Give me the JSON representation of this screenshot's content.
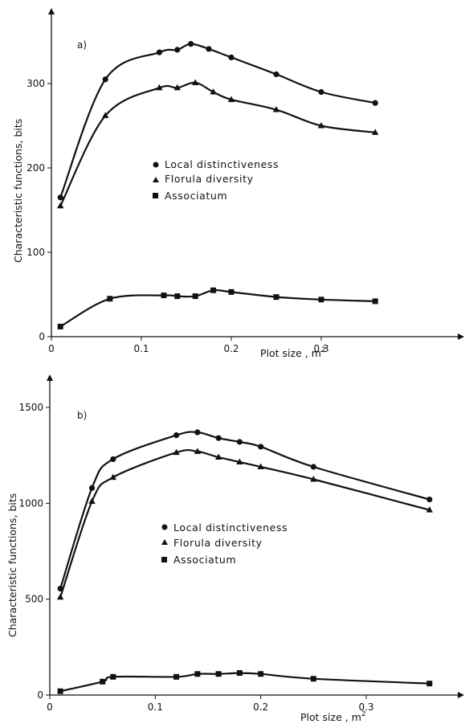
{
  "chart_data": [
    {
      "type": "line",
      "panel_label": "a)",
      "xlabel": "Plot size , m",
      "xlabel_sup": "2",
      "ylabel": "Characteristic functions, bits",
      "xlim": [
        0,
        0.38
      ],
      "ylim": [
        0,
        380
      ],
      "xticks": [
        0,
        0.1,
        0.2,
        0.3
      ],
      "xtick_labels": [
        "0",
        "0.1",
        "0.2",
        "0.3"
      ],
      "yticks": [
        0,
        100,
        200,
        300
      ],
      "ytick_labels": [
        "0",
        "100",
        "200",
        "300"
      ],
      "legend_position": "center",
      "series": [
        {
          "name": "Local distinctiveness",
          "marker": "circle",
          "x": [
            0.01,
            0.06,
            0.12,
            0.14,
            0.155,
            0.175,
            0.2,
            0.25,
            0.3,
            0.36
          ],
          "y": [
            165,
            305,
            337,
            340,
            347,
            341,
            331,
            311,
            290,
            277
          ]
        },
        {
          "name": "Florula diversity",
          "marker": "triangle",
          "x": [
            0.01,
            0.06,
            0.12,
            0.14,
            0.16,
            0.18,
            0.2,
            0.25,
            0.3,
            0.36
          ],
          "y": [
            155,
            262,
            295,
            295,
            301,
            290,
            281,
            269,
            250,
            242
          ]
        },
        {
          "name": "Associatum",
          "marker": "square",
          "x": [
            0.01,
            0.065,
            0.125,
            0.14,
            0.16,
            0.18,
            0.2,
            0.25,
            0.3,
            0.36
          ],
          "y": [
            12,
            45,
            49,
            48,
            48,
            55,
            53,
            47,
            44,
            42
          ]
        }
      ]
    },
    {
      "type": "line",
      "panel_label": "b)",
      "xlabel": "Plot size , m",
      "xlabel_sup": "2",
      "ylabel": "Characteristic functions, bits",
      "xlim": [
        0,
        0.38
      ],
      "ylim": [
        0,
        1650
      ],
      "xticks": [
        0,
        0.1,
        0.2,
        0.3
      ],
      "xtick_labels": [
        "0",
        "0.1",
        "0.2",
        "0.3"
      ],
      "yticks": [
        0,
        500,
        1000,
        1500
      ],
      "ytick_labels": [
        "0",
        "500",
        "1000",
        "1500"
      ],
      "legend_position": "center",
      "series": [
        {
          "name": "Local distinctiveness",
          "marker": "circle",
          "x": [
            0.01,
            0.04,
            0.06,
            0.12,
            0.14,
            0.16,
            0.18,
            0.2,
            0.25,
            0.36
          ],
          "y": [
            555,
            1080,
            1230,
            1355,
            1370,
            1340,
            1320,
            1295,
            1190,
            1020
          ]
        },
        {
          "name": "Florula diversity",
          "marker": "triangle",
          "x": [
            0.01,
            0.04,
            0.06,
            0.12,
            0.14,
            0.16,
            0.18,
            0.2,
            0.25,
            0.36
          ],
          "y": [
            510,
            1010,
            1135,
            1265,
            1270,
            1240,
            1215,
            1190,
            1125,
            965
          ]
        },
        {
          "name": "Associatum",
          "marker": "square",
          "x": [
            0.01,
            0.05,
            0.06,
            0.12,
            0.14,
            0.16,
            0.18,
            0.2,
            0.25,
            0.36
          ],
          "y": [
            20,
            70,
            95,
            95,
            110,
            110,
            115,
            110,
            85,
            60
          ]
        }
      ]
    }
  ]
}
